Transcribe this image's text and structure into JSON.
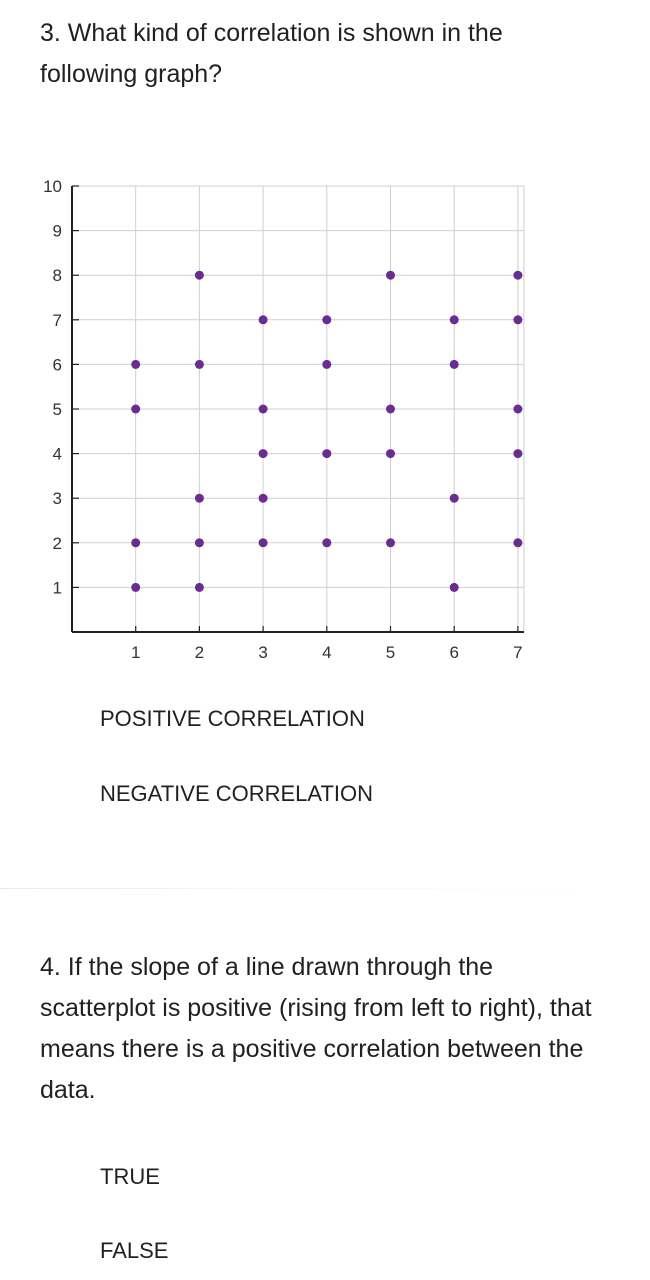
{
  "questions": [
    {
      "text": "3. What kind of correlation is shown in the following graph?",
      "options": [
        "POSITIVE CORRELATION",
        "NEGATIVE CORRELATION"
      ]
    },
    {
      "text": "4. If the slope of a line drawn through the scatterplot is positive (rising from left to right), that means there is a positive correlation between the data.",
      "options": [
        "TRUE",
        "FALSE"
      ]
    }
  ],
  "chart_data": {
    "type": "scatter",
    "title": "",
    "xlabel": "",
    "ylabel": "",
    "xlim": [
      0,
      7
    ],
    "ylim": [
      0,
      10
    ],
    "x_ticks": [
      "1",
      "2",
      "3",
      "4",
      "5",
      "6",
      "7"
    ],
    "y_ticks": [
      "1",
      "2",
      "3",
      "4",
      "5",
      "6",
      "7",
      "8",
      "9",
      "10"
    ],
    "grid": true,
    "point_color": "#6a2c8e",
    "points": [
      [
        1,
        1
      ],
      [
        1,
        2
      ],
      [
        1,
        5
      ],
      [
        1,
        6
      ],
      [
        2,
        1
      ],
      [
        2,
        2
      ],
      [
        2,
        3
      ],
      [
        2,
        6
      ],
      [
        2,
        8
      ],
      [
        3,
        2
      ],
      [
        3,
        3
      ],
      [
        3,
        4
      ],
      [
        3,
        5
      ],
      [
        3,
        7
      ],
      [
        4,
        2
      ],
      [
        4,
        4
      ],
      [
        4,
        6
      ],
      [
        4,
        7
      ],
      [
        5,
        2
      ],
      [
        5,
        4
      ],
      [
        5,
        5
      ],
      [
        5,
        8
      ],
      [
        6,
        1
      ],
      [
        6,
        3
      ],
      [
        6,
        6
      ],
      [
        6,
        7
      ],
      [
        7,
        2
      ],
      [
        7,
        4
      ],
      [
        7,
        5
      ],
      [
        7,
        7
      ],
      [
        7,
        8
      ]
    ]
  }
}
